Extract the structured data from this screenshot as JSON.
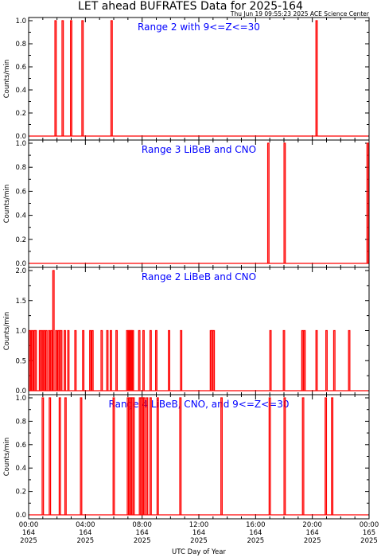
{
  "title": "LET ahead BUFRATES Data for 2025-164",
  "timestamp": "Thu Jun 19 09:55:23 2025 ACE Science Center",
  "xlabel": "UTC Day of Year",
  "x_tick_labels": [
    {
      "time": "00:00",
      "doy": "164",
      "year": "2025"
    },
    {
      "time": "04:00",
      "doy": "164",
      "year": "2025"
    },
    {
      "time": "08:00",
      "doy": "164",
      "year": "2025"
    },
    {
      "time": "12:00",
      "doy": "164",
      "year": "2025"
    },
    {
      "time": "16:00",
      "doy": "164",
      "year": "2025"
    },
    {
      "time": "20:00",
      "doy": "164",
      "year": "2025"
    },
    {
      "time": "00:00",
      "doy": "165",
      "year": "2025"
    }
  ],
  "colors": {
    "data": "#ff0000",
    "panel_label": "#0000ff",
    "axes": "#000000"
  },
  "chart_data": [
    {
      "type": "line",
      "label": "Range 2 with 9<=Z<=30",
      "ylabel": "Counts/min",
      "xlim": [
        0,
        24
      ],
      "ylim": [
        0,
        1
      ],
      "y_ticks": [
        "0.0",
        "0.2",
        "0.4",
        "0.6",
        "0.8",
        "1.0"
      ],
      "baseline": 0,
      "spikes": [
        [
          1.9,
          1
        ],
        [
          2.4,
          1
        ],
        [
          3.0,
          1
        ],
        [
          3.8,
          1
        ],
        [
          5.85,
          1
        ],
        [
          20.3,
          1
        ]
      ]
    },
    {
      "type": "line",
      "label": "Range 3 LiBeB and CNO",
      "ylabel": "Counts/min",
      "xlim": [
        0,
        24
      ],
      "ylim": [
        0,
        1
      ],
      "y_ticks": [
        "0.0",
        "0.2",
        "0.4",
        "0.6",
        "0.8",
        "1.0"
      ],
      "baseline": 0,
      "spikes": [
        [
          16.9,
          1
        ],
        [
          18.05,
          1
        ],
        [
          23.9,
          1
        ]
      ]
    },
    {
      "type": "line",
      "label": "Range 2 LiBeB and CNO",
      "ylabel": "Counts/min",
      "xlim": [
        0,
        24
      ],
      "ylim": [
        0,
        2
      ],
      "y_ticks": [
        "0.0",
        "0.5",
        "1.0",
        "1.5",
        "2.0"
      ],
      "baseline": 0,
      "spikes": [
        [
          0.1,
          1
        ],
        [
          0.25,
          1
        ],
        [
          0.4,
          1
        ],
        [
          0.5,
          1
        ],
        [
          0.8,
          1
        ],
        [
          0.95,
          1
        ],
        [
          1.1,
          1
        ],
        [
          1.25,
          1
        ],
        [
          1.45,
          1
        ],
        [
          1.6,
          1
        ],
        [
          1.75,
          2
        ],
        [
          1.95,
          1
        ],
        [
          2.1,
          1
        ],
        [
          2.2,
          1
        ],
        [
          2.3,
          1
        ],
        [
          2.55,
          1
        ],
        [
          2.8,
          1
        ],
        [
          3.3,
          1
        ],
        [
          3.85,
          1
        ],
        [
          4.35,
          1
        ],
        [
          4.5,
          1
        ],
        [
          5.15,
          1
        ],
        [
          5.55,
          1
        ],
        [
          5.8,
          1
        ],
        [
          6.2,
          1
        ],
        [
          6.95,
          1
        ],
        [
          7.05,
          1
        ],
        [
          7.12,
          1
        ],
        [
          7.2,
          1
        ],
        [
          7.28,
          1
        ],
        [
          7.35,
          1
        ],
        [
          7.8,
          1
        ],
        [
          8.1,
          1
        ],
        [
          8.6,
          1
        ],
        [
          9.0,
          1
        ],
        [
          9.9,
          1
        ],
        [
          10.75,
          1
        ],
        [
          12.85,
          1
        ],
        [
          12.95,
          1
        ],
        [
          13.05,
          1
        ],
        [
          17.05,
          1
        ],
        [
          18.0,
          1
        ],
        [
          19.3,
          1
        ],
        [
          19.45,
          1
        ],
        [
          20.3,
          1
        ],
        [
          21.0,
          1
        ],
        [
          21.55,
          1
        ],
        [
          22.6,
          1
        ]
      ]
    },
    {
      "type": "line",
      "label": "Range 4 LiBeB, CNO, and 9<=Z<=30",
      "ylabel": "Counts/min",
      "xlim": [
        0,
        24
      ],
      "ylim": [
        0,
        1
      ],
      "y_ticks": [
        "0.0",
        "0.2",
        "0.4",
        "0.6",
        "0.8",
        "1.0"
      ],
      "baseline": 0,
      "spikes": [
        [
          1.0,
          1
        ],
        [
          1.5,
          1
        ],
        [
          2.2,
          1
        ],
        [
          2.6,
          1
        ],
        [
          3.7,
          1
        ],
        [
          6.0,
          1
        ],
        [
          7.0,
          1
        ],
        [
          7.1,
          1
        ],
        [
          7.2,
          1
        ],
        [
          7.3,
          1
        ],
        [
          7.4,
          1
        ],
        [
          7.85,
          1
        ],
        [
          7.95,
          1
        ],
        [
          8.05,
          1
        ],
        [
          8.15,
          1
        ],
        [
          8.35,
          1
        ],
        [
          8.6,
          1
        ],
        [
          9.1,
          1
        ],
        [
          10.7,
          1
        ],
        [
          13.6,
          1
        ],
        [
          17.0,
          1
        ],
        [
          18.05,
          1
        ],
        [
          19.35,
          1
        ],
        [
          20.95,
          1
        ],
        [
          21.4,
          1
        ]
      ]
    }
  ]
}
